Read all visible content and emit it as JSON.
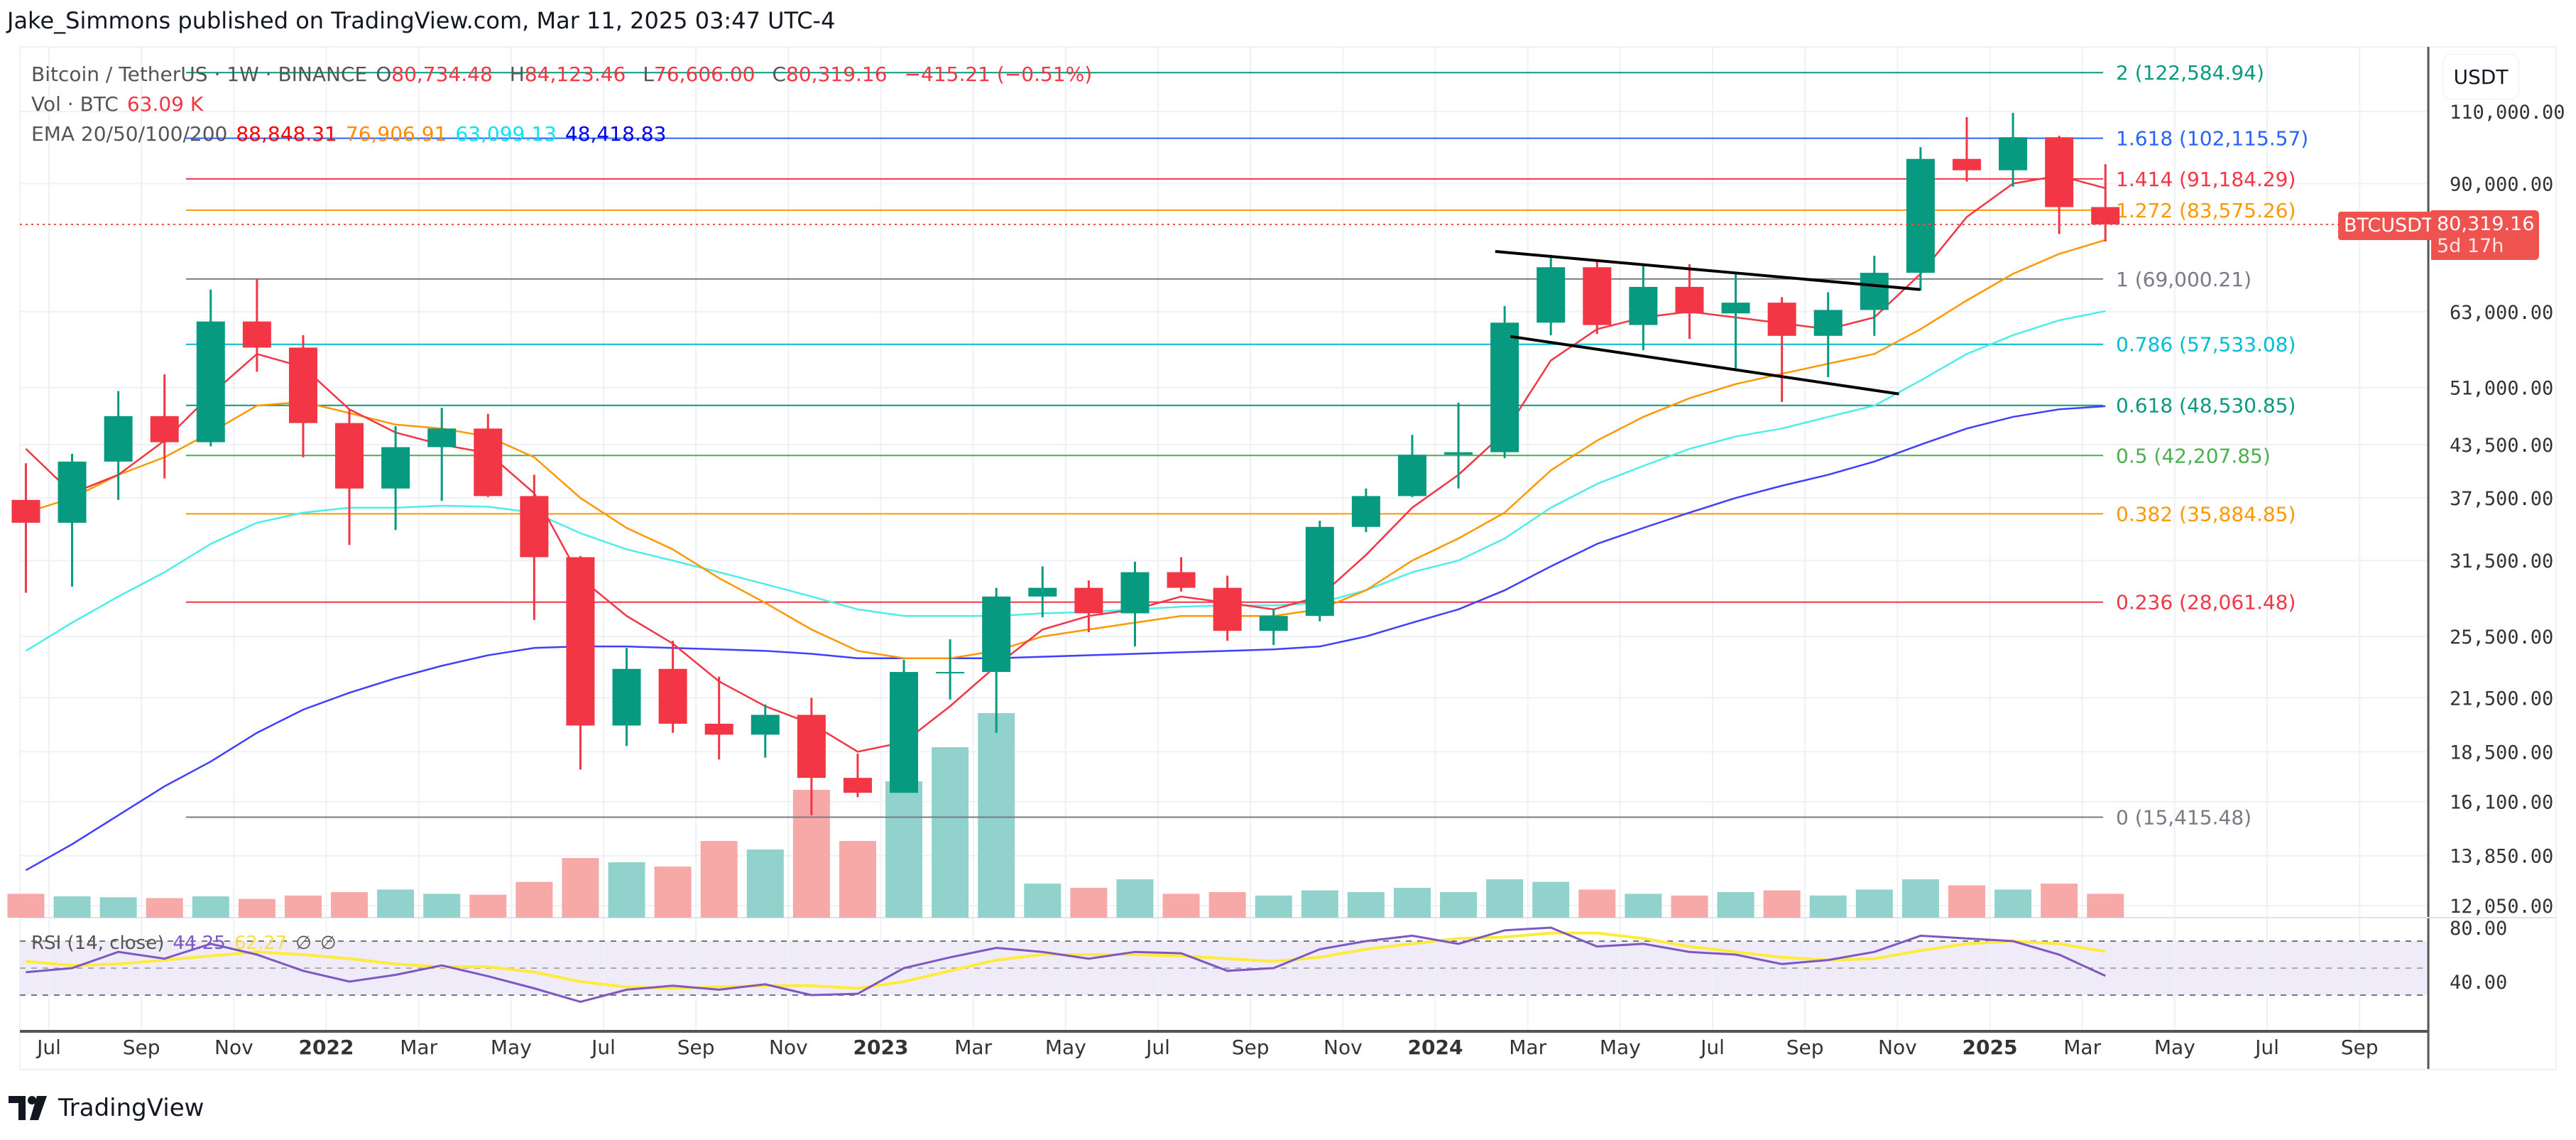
{
  "publisher": "Jake_Simmons published on TradingView.com, Mar 11, 2025 03:47 UTC-4",
  "legend": {
    "symbol": "Bitcoin / TetherUS · 1W · BINANCE",
    "open_label": "O",
    "open": "80,734.48",
    "high_label": "H",
    "high": "84,123.46",
    "low_label": "L",
    "low": "76,606.00",
    "close_label": "C",
    "close": "80,319.16",
    "change": "−415.21 (−0.51%)",
    "vol_label": "Vol · BTC",
    "vol": "63.09 K",
    "ema_label": "EMA 20/50/100/200",
    "ema20": "88,848.31",
    "ema50": "76,906.91",
    "ema100": "63,099.13",
    "ema200": "48,418.83",
    "rsi_label": "RSI (14, close)",
    "rsi": "44.25",
    "rsi_ma": "62.27",
    "rsi_na1": "∅",
    "rsi_na2": "∅"
  },
  "currency": "USDT",
  "price_tag": {
    "symbol": "BTCUSDT",
    "price": "80,319.16",
    "countdown": "5d 17h",
    "color": "#ef5350"
  },
  "logo_text": "TradingView",
  "colors": {
    "up": "#089981",
    "down": "#f23645",
    "vol_up": "#92d2cc",
    "vol_down": "#f7a9a7",
    "ema20": "#f23645",
    "ema50": "#ff9800",
    "ema100": "#4deeea",
    "ema200": "#3f3fff",
    "rsi": "#7e57c2",
    "rsi_ma": "#ffeb3b",
    "trendline": "#000000"
  },
  "chart_data": {
    "type": "candlestick",
    "scale": "log",
    "ylim": [
      11500,
      132000
    ],
    "price_ticks": [
      "110,000.00",
      "90,000.00",
      "63,000.00",
      "51,000.00",
      "43,500.00",
      "37,500.00",
      "31,500.00",
      "25,500.00",
      "21,500.00",
      "18,500.00",
      "16,100.00",
      "13,850.00",
      "12,050.00"
    ],
    "time_ticks": [
      {
        "date": "2021-07",
        "label": "Jul"
      },
      {
        "date": "2021-09",
        "label": "Sep"
      },
      {
        "date": "2021-11",
        "label": "Nov"
      },
      {
        "date": "2022-01",
        "label": "2022",
        "year": true
      },
      {
        "date": "2022-03",
        "label": "Mar"
      },
      {
        "date": "2022-05",
        "label": "May"
      },
      {
        "date": "2022-07",
        "label": "Jul"
      },
      {
        "date": "2022-09",
        "label": "Sep"
      },
      {
        "date": "2022-11",
        "label": "Nov"
      },
      {
        "date": "2023-01",
        "label": "2023",
        "year": true
      },
      {
        "date": "2023-03",
        "label": "Mar"
      },
      {
        "date": "2023-05",
        "label": "May"
      },
      {
        "date": "2023-07",
        "label": "Jul"
      },
      {
        "date": "2023-09",
        "label": "Sep"
      },
      {
        "date": "2023-11",
        "label": "Nov"
      },
      {
        "date": "2024-01",
        "label": "2024",
        "year": true
      },
      {
        "date": "2024-03",
        "label": "Mar"
      },
      {
        "date": "2024-05",
        "label": "May"
      },
      {
        "date": "2024-07",
        "label": "Jul"
      },
      {
        "date": "2024-09",
        "label": "Sep"
      },
      {
        "date": "2024-11",
        "label": "Nov"
      },
      {
        "date": "2025-01",
        "label": "2025",
        "year": true
      },
      {
        "date": "2025-03",
        "label": "Mar"
      },
      {
        "date": "2025-05",
        "label": "May"
      },
      {
        "date": "2025-07",
        "label": "Jul"
      },
      {
        "date": "2025-09",
        "label": "Sep"
      }
    ],
    "candles": [
      [
        "2021-06",
        37300,
        41300,
        28800,
        35000
      ],
      [
        "2021-07",
        35000,
        42400,
        29300,
        41500
      ],
      [
        "2021-08",
        41500,
        50500,
        37300,
        47100
      ],
      [
        "2021-09",
        47100,
        52900,
        39600,
        43800
      ],
      [
        "2021-10",
        43800,
        67000,
        43300,
        61300
      ],
      [
        "2021-11",
        61300,
        69000,
        53300,
        57000
      ],
      [
        "2021-12",
        57000,
        59000,
        42000,
        46200
      ],
      [
        "2022-01",
        46200,
        47900,
        32900,
        38500
      ],
      [
        "2022-02",
        38500,
        45800,
        34300,
        43200
      ],
      [
        "2022-03",
        43200,
        48200,
        37200,
        45500
      ],
      [
        "2022-04",
        45500,
        47400,
        37600,
        37700
      ],
      [
        "2022-05",
        37700,
        40000,
        26700,
        31800
      ],
      [
        "2022-06",
        31800,
        31900,
        17600,
        19900
      ],
      [
        "2022-07",
        19900,
        24700,
        18800,
        23300
      ],
      [
        "2022-08",
        23300,
        25200,
        19500,
        20000
      ],
      [
        "2022-09",
        20000,
        22800,
        18100,
        19400
      ],
      [
        "2022-10",
        19400,
        21100,
        18200,
        20500
      ],
      [
        "2022-11",
        20500,
        21500,
        15500,
        17200
      ],
      [
        "2022-12",
        17200,
        18400,
        16300,
        16500
      ],
      [
        "2023-01",
        16500,
        23900,
        16500,
        23100
      ],
      [
        "2023-02",
        23100,
        25300,
        21400,
        23100
      ],
      [
        "2023-03",
        23100,
        29200,
        19500,
        28500
      ],
      [
        "2023-04",
        28500,
        31000,
        26900,
        29200
      ],
      [
        "2023-05",
        29200,
        29800,
        25800,
        27200
      ],
      [
        "2023-06",
        27200,
        31400,
        24800,
        30500
      ],
      [
        "2023-07",
        30500,
        31800,
        28900,
        29200
      ],
      [
        "2023-08",
        29200,
        30200,
        25200,
        25900
      ],
      [
        "2023-09",
        25900,
        27500,
        24900,
        27000
      ],
      [
        "2023-10",
        27000,
        35200,
        26600,
        34600
      ],
      [
        "2023-11",
        34600,
        38500,
        34100,
        37700
      ],
      [
        "2023-12",
        37700,
        44700,
        37600,
        42300
      ],
      [
        "2024-01",
        42300,
        48900,
        38500,
        42600
      ],
      [
        "2024-02",
        42600,
        64000,
        41900,
        61100
      ],
      [
        "2024-03",
        61100,
        73800,
        59000,
        71300
      ],
      [
        "2024-04",
        71300,
        72800,
        59200,
        60700
      ],
      [
        "2024-05",
        60700,
        71900,
        56600,
        67500
      ],
      [
        "2024-06",
        67500,
        71900,
        58400,
        62700
      ],
      [
        "2024-07",
        62700,
        70000,
        53500,
        64600
      ],
      [
        "2024-08",
        64600,
        65600,
        49000,
        58900
      ],
      [
        "2024-09",
        58900,
        66500,
        52500,
        63300
      ],
      [
        "2024-10",
        63300,
        73600,
        58900,
        70200
      ],
      [
        "2024-11",
        70200,
        99600,
        66800,
        96400
      ],
      [
        "2024-12",
        96400,
        108300,
        90500,
        93400
      ],
      [
        "2025-01",
        93400,
        109600,
        89200,
        102400
      ],
      [
        "2025-02",
        102400,
        102800,
        78200,
        84300
      ],
      [
        "2025-03",
        84300,
        95000,
        76600,
        80319.16
      ]
    ],
    "volume_k": [
      280,
      250,
      240,
      230,
      250,
      220,
      260,
      300,
      330,
      280,
      270,
      420,
      700,
      650,
      600,
      900,
      800,
      1500,
      900,
      1600,
      2000,
      2400,
      400,
      350,
      450,
      280,
      300,
      260,
      320,
      300,
      350,
      300,
      450,
      420,
      330,
      280,
      260,
      300,
      320,
      260,
      330,
      450,
      380,
      330,
      400,
      280
    ],
    "ema": {
      "ema20": [
        43000,
        38000,
        40000,
        44000,
        50000,
        56000,
        54000,
        48000,
        45000,
        43500,
        42500,
        38000,
        30000,
        27000,
        25000,
        22500,
        21000,
        20000,
        18500,
        19000,
        21000,
        23500,
        26000,
        27000,
        27500,
        28500,
        28000,
        27500,
        28500,
        32000,
        36500,
        40000,
        45000,
        55000,
        60000,
        62000,
        63000,
        62000,
        61000,
        60000,
        62000,
        70000,
        82000,
        90000,
        92000,
        88848
      ],
      "ema50": [
        36000,
        37500,
        40000,
        42000,
        45000,
        48500,
        49000,
        47500,
        46000,
        45500,
        44500,
        42000,
        37500,
        34500,
        32500,
        30000,
        28000,
        26000,
        24500,
        24000,
        24000,
        24500,
        25500,
        26000,
        26500,
        27000,
        27000,
        27000,
        27500,
        29000,
        31500,
        33500,
        36000,
        40500,
        44000,
        47000,
        49500,
        51500,
        53000,
        54500,
        56000,
        60000,
        65000,
        70000,
        74000,
        76907
      ],
      "ema100": [
        24500,
        26500,
        28500,
        30500,
        33000,
        35000,
        36000,
        36500,
        36500,
        36700,
        36600,
        36000,
        34000,
        32500,
        31500,
        30500,
        29500,
        28500,
        27500,
        27000,
        27000,
        27000,
        27200,
        27300,
        27500,
        27700,
        27800,
        27800,
        28000,
        29000,
        30500,
        31500,
        33500,
        36500,
        39000,
        41000,
        43000,
        44500,
        45500,
        47000,
        48500,
        52000,
        56000,
        59000,
        61500,
        63099
      ],
      "ema200": [
        13300,
        14300,
        15500,
        16800,
        18000,
        19500,
        20800,
        21800,
        22700,
        23500,
        24200,
        24700,
        24800,
        24800,
        24700,
        24600,
        24500,
        24300,
        24000,
        24000,
        24000,
        24000,
        24100,
        24200,
        24300,
        24400,
        24500,
        24600,
        24800,
        25500,
        26500,
        27500,
        29000,
        31000,
        33000,
        34500,
        36000,
        37500,
        38800,
        40000,
        41500,
        43500,
        45500,
        47000,
        48000,
        48419
      ]
    },
    "fib_levels": [
      {
        "label": "2 (122,584.94)",
        "value": 122584.94,
        "color": "#089981"
      },
      {
        "label": "1.618 (102,115.57)",
        "value": 102115.57,
        "color": "#2962ff"
      },
      {
        "label": "1.414 (91,184.29)",
        "value": 91184.29,
        "color": "#f23645"
      },
      {
        "label": "1.272 (83,575.26)",
        "value": 83575.26,
        "color": "#ff9800"
      },
      {
        "label": "1 (69,000.21)",
        "value": 69000.21,
        "color": "#787b86"
      },
      {
        "label": "0.786 (57,533.08)",
        "value": 57533.08,
        "color": "#00bcd4"
      },
      {
        "label": "0.618 (48,530.85)",
        "value": 48530.85,
        "color": "#089981"
      },
      {
        "label": "0.5 (42,207.85)",
        "value": 42207.85,
        "color": "#4caf50"
      },
      {
        "label": "0.382 (35,884.85)",
        "value": 35884.85,
        "color": "#ff9800"
      },
      {
        "label": "0.236 (28,061.48)",
        "value": 28061.48,
        "color": "#f23645"
      },
      {
        "label": "0 (15,415.48)",
        "value": 15415.48,
        "color": "#787b86"
      }
    ],
    "trendlines": [
      {
        "from": [
          "2024-02-10",
          74500
        ],
        "to": [
          "2024-11-16",
          67000
        ]
      },
      {
        "from": [
          "2024-02-20",
          58800
        ],
        "to": [
          "2024-11-02",
          50100
        ]
      }
    ],
    "rsi": {
      "ticks": [
        "80.00",
        "40.00"
      ],
      "values": [
        47,
        50,
        62,
        57,
        68,
        60,
        48,
        40,
        45,
        52,
        44,
        35,
        25,
        34,
        37,
        34,
        38,
        30,
        31,
        50,
        58,
        65,
        62,
        57,
        62,
        61,
        48,
        50,
        64,
        70,
        74,
        68,
        78,
        80,
        66,
        68,
        62,
        60,
        53,
        56,
        62,
        74,
        72,
        70,
        60,
        44.25
      ],
      "ma": [
        55,
        52,
        53,
        56,
        59,
        62,
        60,
        57,
        53,
        51,
        51,
        47,
        40,
        36,
        35,
        36,
        37,
        37,
        35,
        40,
        48,
        56,
        60,
        60,
        60,
        59,
        57,
        55,
        58,
        64,
        68,
        72,
        73,
        76,
        76,
        72,
        66,
        62,
        58,
        56,
        57,
        63,
        68,
        70,
        68,
        62.27
      ]
    }
  }
}
